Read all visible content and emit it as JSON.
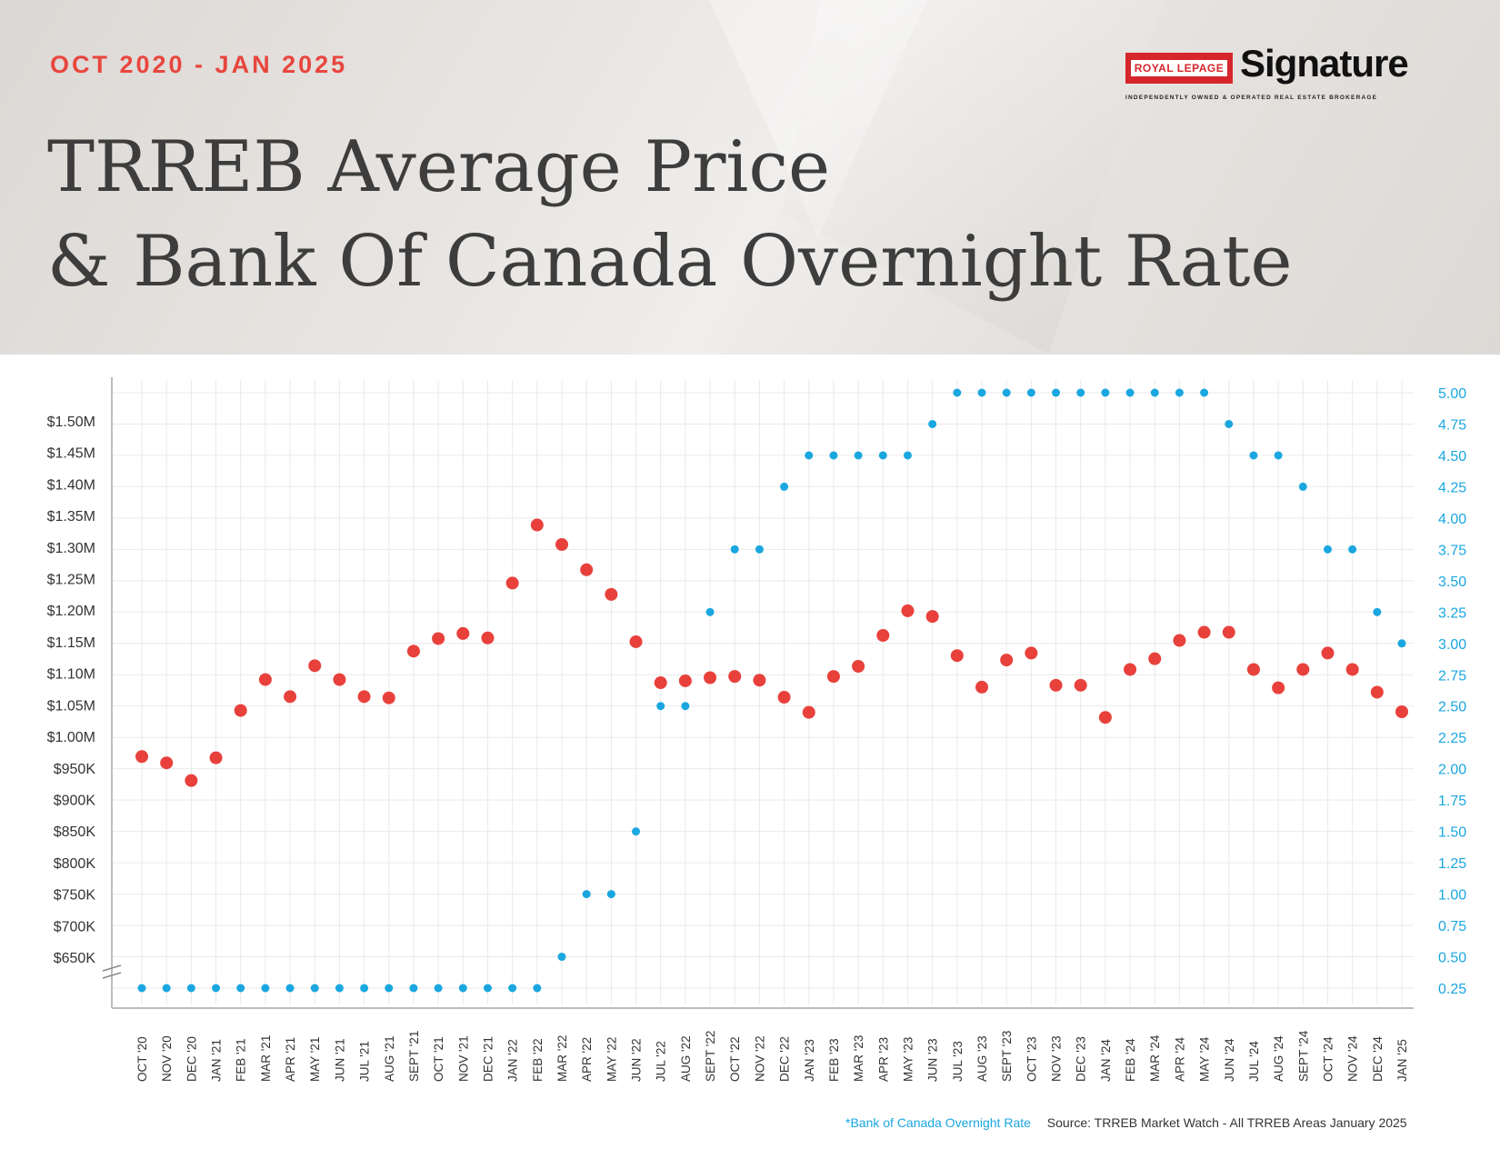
{
  "header": {
    "subtitle": "OCT 2020 - JAN 2025",
    "title_line1": "TRREB Average Price",
    "title_line2": "& Bank Of Canada Overnight Rate"
  },
  "logo": {
    "badge": "ROYAL LEPAGE",
    "wordmark": "Signature",
    "tagline": "INDEPENDENTLY OWNED & OPERATED REAL ESTATE BROKERAGE"
  },
  "footer": {
    "legend_note": "*Bank of Canada Overnight Rate",
    "source": "Source: TRREB Market Watch - All TRREB Areas January 2025"
  },
  "colors": {
    "price": "#e8413c",
    "rate": "#1aa7e0",
    "grid": "#e9e9e9",
    "axis_text": "#333333"
  },
  "chart_data": {
    "type": "scatter",
    "categories": [
      "OCT '20",
      "NOV '20",
      "DEC '20",
      "JAN '21",
      "FEB '21",
      "MAR '21",
      "APR '21",
      "MAY '21",
      "JUN '21",
      "JUL '21",
      "AUG '21",
      "SEPT '21",
      "OCT '21",
      "NOV '21",
      "DEC '21",
      "JAN '22",
      "FEB '22",
      "MAR '22",
      "APR '22",
      "MAY '22",
      "JUN '22",
      "JUL '22",
      "AUG '22",
      "SEPT '22",
      "OCT '22",
      "NOV '22",
      "DEC '22",
      "JAN '23",
      "FEB '23",
      "MAR '23",
      "APR '23",
      "MAY '23",
      "JUN '23",
      "JUL '23",
      "AUG '23",
      "SEPT '23",
      "OCT '23",
      "NOV '23",
      "DEC '23",
      "JAN '24",
      "FEB '24",
      "MAR '24",
      "APR '24",
      "MAY '24",
      "JUN '24",
      "JUL '24",
      "AUG '24",
      "SEPT '24",
      "OCT '24",
      "NOV '24",
      "DEC '24",
      "JAN '25"
    ],
    "series": [
      {
        "axis": "left",
        "values": [
          968000,
          958000,
          930000,
          966000,
          1041000,
          1090000,
          1063000,
          1112000,
          1090000,
          1063000,
          1061000,
          1135000,
          1155000,
          1163000,
          1156000,
          1243000,
          1335000,
          1304000,
          1264000,
          1225000,
          1150000,
          1085000,
          1088000,
          1093000,
          1095000,
          1089000,
          1062000,
          1038000,
          1095000,
          1111000,
          1160000,
          1199000,
          1190000,
          1128000,
          1078000,
          1121000,
          1132000,
          1081000,
          1081000,
          1030000,
          1106000,
          1123000,
          1152000,
          1165000,
          1165000,
          1106000,
          1077000,
          1106000,
          1132000,
          1106000,
          1070000,
          1039000
        ]
      },
      {
        "axis": "right",
        "values": [
          0.25,
          0.25,
          0.25,
          0.25,
          0.25,
          0.25,
          0.25,
          0.25,
          0.25,
          0.25,
          0.25,
          0.25,
          0.25,
          0.25,
          0.25,
          0.25,
          0.25,
          0.5,
          1.0,
          1.0,
          1.5,
          2.5,
          2.5,
          3.25,
          3.75,
          3.75,
          4.25,
          4.5,
          4.5,
          4.5,
          4.5,
          4.5,
          4.75,
          5.0,
          5.0,
          5.0,
          5.0,
          5.0,
          5.0,
          5.0,
          5.0,
          5.0,
          5.0,
          5.0,
          4.75,
          4.5,
          4.5,
          4.25,
          3.75,
          3.75,
          3.25,
          3.0
        ]
      }
    ],
    "y_left_ticks": [
      "$1.50M",
      "$1.45M",
      "$1.40M",
      "$1.35M",
      "$1.30M",
      "$1.25M",
      "$1.20M",
      "$1.15M",
      "$1.10M",
      "$1.05M",
      "$1.00M",
      "$950K",
      "$900K",
      "$850K",
      "$800K",
      "$750K",
      "$700K",
      "$650K"
    ],
    "y_left_tick_values": [
      1500000,
      1450000,
      1400000,
      1350000,
      1300000,
      1250000,
      1200000,
      1150000,
      1100000,
      1050000,
      1000000,
      950000,
      900000,
      850000,
      800000,
      750000,
      700000,
      650000
    ],
    "y_right_ticks": [
      "5.00",
      "4.75",
      "4.50",
      "4.25",
      "4.00",
      "3.75",
      "3.50",
      "3.25",
      "3.00",
      "2.75",
      "2.50",
      "2.25",
      "2.00",
      "1.75",
      "1.50",
      "1.25",
      "1.00",
      "0.75",
      "0.50",
      "0.25"
    ],
    "ylim_left": [
      650000,
      1500000
    ],
    "ylim_right": [
      0.25,
      5.0
    ],
    "grid": true,
    "left_axis_break": true
  }
}
